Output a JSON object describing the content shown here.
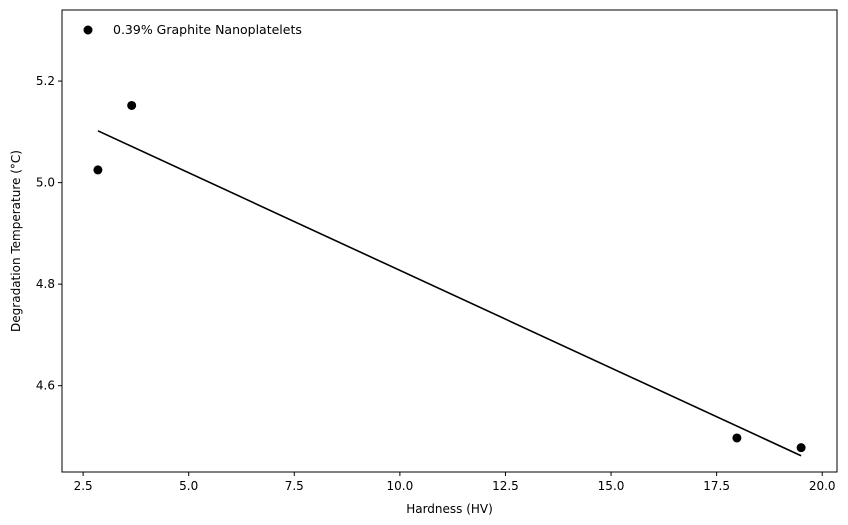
{
  "chart_data": {
    "type": "scatter",
    "xlabel": "Hardness (HV)",
    "ylabel": "Degradation Temperature (°C)",
    "xlim": [
      2.0,
      20.35
    ],
    "ylim": [
      4.43,
      5.34
    ],
    "xticks": [
      2.5,
      5.0,
      7.5,
      10.0,
      12.5,
      15.0,
      17.5,
      20.0
    ],
    "xtick_labels": [
      "2.5",
      "5.0",
      "7.5",
      "10.0",
      "12.5",
      "15.0",
      "17.5",
      "20.0"
    ],
    "yticks": [
      4.6,
      4.8,
      5.0,
      5.2
    ],
    "ytick_labels": [
      "4.6",
      "4.8",
      "5.0",
      "5.2"
    ],
    "grid": false,
    "legend_position": "top-left",
    "series": [
      {
        "name": "0.39% Graphite Nanoplatelets",
        "color": "#000000",
        "marker": "circle",
        "points": [
          {
            "x": 2.85,
            "y": 5.025
          },
          {
            "x": 3.65,
            "y": 5.152
          },
          {
            "x": 17.98,
            "y": 4.497
          },
          {
            "x": 19.5,
            "y": 4.478
          }
        ]
      }
    ],
    "trendline": {
      "color": "#000000",
      "points": [
        {
          "x": 2.85,
          "y": 5.102
        },
        {
          "x": 19.5,
          "y": 4.462
        }
      ]
    }
  }
}
